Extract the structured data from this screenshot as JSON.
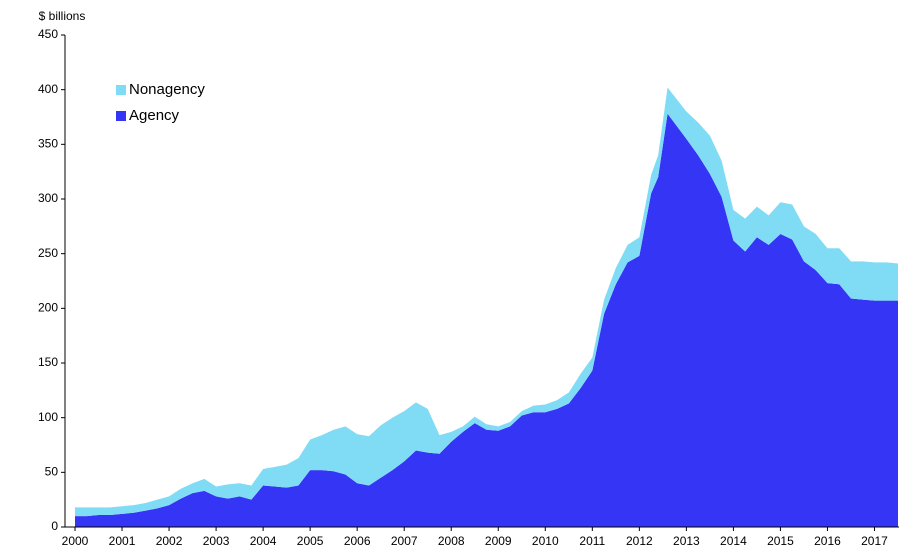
{
  "chart_data": {
    "type": "stacked_area",
    "y_label": "$ billions",
    "x": [
      2000,
      2000.25,
      2000.5,
      2000.75,
      2001,
      2001.25,
      2001.5,
      2001.75,
      2002,
      2002.25,
      2002.5,
      2002.75,
      2003,
      2003.25,
      2003.5,
      2003.75,
      2004,
      2004.25,
      2004.5,
      2004.75,
      2005,
      2005.25,
      2005.5,
      2005.75,
      2006,
      2006.25,
      2006.5,
      2006.75,
      2007,
      2007.25,
      2007.5,
      2007.75,
      2008,
      2008.25,
      2008.5,
      2008.75,
      2009,
      2009.25,
      2009.5,
      2009.75,
      2010,
      2010.25,
      2010.5,
      2010.75,
      2011,
      2011.25,
      2011.5,
      2011.75,
      2012,
      2012.25,
      2012.4,
      2012.6,
      2013,
      2013.25,
      2013.5,
      2013.75,
      2014,
      2014.25,
      2014.5,
      2014.75,
      2015,
      2015.25,
      2015.5,
      2015.75,
      2016,
      2016.25,
      2016.5,
      2016.75,
      2017,
      2017.25,
      2017.5
    ],
    "series": [
      {
        "name": "Agency",
        "color": "#3535f5",
        "values": [
          10,
          10,
          11,
          11,
          12,
          13,
          15,
          17,
          20,
          26,
          31,
          33,
          28,
          26,
          28,
          25,
          38,
          37,
          36,
          38,
          52,
          52,
          51,
          48,
          40,
          38,
          45,
          52,
          60,
          70,
          68,
          67,
          78,
          87,
          95,
          89,
          88,
          92,
          102,
          105,
          105,
          108,
          113,
          127,
          143,
          195,
          222,
          242,
          248,
          305,
          320,
          378,
          355,
          340,
          323,
          302,
          262,
          252,
          265,
          258,
          268,
          263,
          243,
          235,
          223,
          222,
          209,
          208,
          207,
          207,
          207
        ]
      },
      {
        "name": "Nonagency",
        "color": "#80dcf5",
        "values": [
          8,
          8,
          7,
          7,
          7,
          7,
          7,
          8,
          8,
          9,
          9,
          11,
          9,
          13,
          12,
          13,
          15,
          18,
          21,
          25,
          28,
          32,
          38,
          44,
          45,
          45,
          48,
          48,
          46,
          44,
          40,
          17,
          9,
          5,
          6,
          5,
          4,
          4,
          4,
          6,
          7,
          8,
          10,
          13,
          12,
          13,
          15,
          16,
          17,
          17,
          20,
          24,
          25,
          30,
          35,
          33,
          28,
          30,
          28,
          27,
          29,
          32,
          32,
          33,
          32,
          33,
          34,
          35,
          35,
          35,
          34
        ]
      }
    ],
    "xlim": [
      2000,
      2017.5
    ],
    "xticks": [
      2000,
      2001,
      2002,
      2003,
      2004,
      2005,
      2006,
      2007,
      2008,
      2009,
      2010,
      2011,
      2012,
      2013,
      2014,
      2015,
      2016,
      2017
    ],
    "ylim": [
      0,
      450
    ],
    "yticks": [
      0,
      50,
      100,
      150,
      200,
      250,
      300,
      350,
      400,
      450
    ],
    "legend": "top-left"
  }
}
